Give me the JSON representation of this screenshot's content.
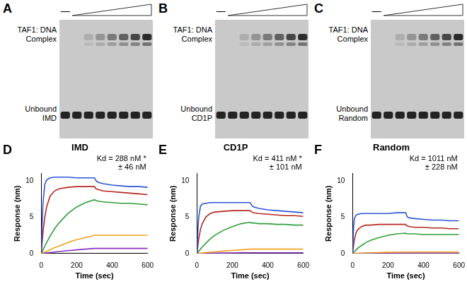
{
  "gels": [
    {
      "panel": "A",
      "lanes": 8,
      "control_lane": "—",
      "complex_label": [
        "TAF1: DNA",
        "Complex"
      ],
      "unbound_label": [
        "Unbound",
        "IMD"
      ]
    },
    {
      "panel": "B",
      "lanes": 8,
      "control_lane": "—",
      "complex_label": [
        "TAF1: DNA",
        "Complex"
      ],
      "unbound_label": [
        "Unbound",
        "CD1P"
      ]
    },
    {
      "panel": "C",
      "lanes": 8,
      "control_lane": "—",
      "complex_label": [
        "TAF1: DNA",
        "Complex"
      ],
      "unbound_label": [
        "Unbound",
        "Random"
      ]
    }
  ],
  "chart_data": [
    {
      "panel": "D",
      "type": "line",
      "title": "IMD",
      "annotations": [
        "Kd = 288 nM *",
        "± 46 nM"
      ],
      "x_label": "Time (sec)",
      "y_label": "Response (nm)",
      "x": [
        0,
        5,
        10,
        20,
        30,
        50,
        75,
        100,
        150,
        200,
        250,
        300,
        305,
        310,
        320,
        350,
        400,
        450,
        500,
        550,
        600
      ],
      "series": [
        {
          "color": "#2c55d6",
          "values": [
            0,
            4,
            7,
            9.5,
            10.1,
            10.4,
            10.5,
            10.5,
            10.5,
            10.4,
            10.4,
            10.4,
            10.2,
            10.0,
            9.8,
            9.6,
            9.4,
            9.3,
            9.2,
            9.2,
            9.1
          ]
        },
        {
          "color": "#b5271f",
          "values": [
            0,
            1.5,
            3,
            5,
            6.4,
            7.9,
            8.6,
            8.9,
            9.1,
            9.2,
            9.2,
            9.2,
            9.0,
            8.9,
            8.8,
            8.6,
            8.5,
            8.4,
            8.3,
            8.2,
            8.1
          ]
        },
        {
          "color": "#2e9e3a",
          "values": [
            0,
            0.2,
            0.5,
            1,
            1.5,
            2.4,
            3.4,
            4.2,
            5.5,
            6.4,
            7.0,
            7.4,
            7.3,
            7.3,
            7.2,
            7.1,
            7.0,
            6.9,
            6.9,
            6.8,
            6.7
          ]
        },
        {
          "color": "#f2a01f",
          "values": [
            0,
            0.05,
            0.1,
            0.2,
            0.3,
            0.5,
            0.8,
            1.0,
            1.5,
            1.9,
            2.2,
            2.5,
            2.5,
            2.5,
            2.5,
            2.5,
            2.5,
            2.5,
            2.5,
            2.5,
            2.5
          ]
        },
        {
          "color": "#8b2fc9",
          "values": [
            0,
            0.01,
            0.02,
            0.05,
            0.08,
            0.13,
            0.2,
            0.27,
            0.4,
            0.5,
            0.6,
            0.7,
            0.7,
            0.7,
            0.7,
            0.7,
            0.7,
            0.7,
            0.7,
            0.7,
            0.7
          ]
        }
      ],
      "xlim": [
        0,
        600
      ],
      "xticks": [
        0,
        200,
        400,
        600
      ],
      "ylim": [
        0,
        11
      ],
      "yticks": [
        0,
        5,
        10
      ],
      "grid": false
    },
    {
      "panel": "E",
      "type": "line",
      "title": "CD1P",
      "annotations": [
        "Kd = 411 nM *",
        "± 101 nM"
      ],
      "x_label": "Time (sec)",
      "y_label": "Response (nm)",
      "x": [
        0,
        5,
        10,
        20,
        30,
        50,
        75,
        100,
        150,
        200,
        250,
        300,
        305,
        310,
        320,
        350,
        400,
        450,
        500,
        550,
        600
      ],
      "series": [
        {
          "color": "#2c55d6",
          "values": [
            0,
            3,
            5,
            6.5,
            6.8,
            6.9,
            7.0,
            7.0,
            7.0,
            7.0,
            7.0,
            7.0,
            6.8,
            6.6,
            6.4,
            6.2,
            6.0,
            5.9,
            5.8,
            5.7,
            5.6
          ]
        },
        {
          "color": "#b5271f",
          "values": [
            0,
            1,
            2,
            3.3,
            4.1,
            5.0,
            5.5,
            5.7,
            5.8,
            5.9,
            5.9,
            5.9,
            5.8,
            5.7,
            5.6,
            5.5,
            5.4,
            5.3,
            5.2,
            5.2,
            5.1
          ]
        },
        {
          "color": "#2e9e3a",
          "values": [
            0,
            0.15,
            0.3,
            0.6,
            0.9,
            1.4,
            2.0,
            2.5,
            3.2,
            3.7,
            4.1,
            4.3,
            4.2,
            4.2,
            4.2,
            4.1,
            4.1,
            4.0,
            4.0,
            3.9,
            3.9
          ]
        },
        {
          "color": "#f2a01f",
          "values": [
            0,
            0.01,
            0.02,
            0.05,
            0.07,
            0.12,
            0.18,
            0.23,
            0.33,
            0.42,
            0.5,
            0.6,
            0.6,
            0.6,
            0.6,
            0.6,
            0.6,
            0.6,
            0.6,
            0.6,
            0.6
          ]
        },
        {
          "color": "#8b2fc9",
          "values": [
            0,
            0,
            0.01,
            0.01,
            0.02,
            0.03,
            0.04,
            0.05,
            0.07,
            0.08,
            0.09,
            0.1,
            0.1,
            0.1,
            0.1,
            0.1,
            0.1,
            0.1,
            0.1,
            0.1,
            0.1
          ]
        }
      ],
      "xlim": [
        0,
        600
      ],
      "xticks": [
        0,
        200,
        400,
        600
      ],
      "ylim": [
        0,
        11
      ],
      "yticks": [
        0,
        5,
        10
      ],
      "grid": false
    },
    {
      "panel": "F",
      "type": "line",
      "title": "Random",
      "annotations": [
        "Kd = 1011 nM",
        "± 228 nM"
      ],
      "x_label": "Time (sec)",
      "y_label": "Response (nm)",
      "x": [
        0,
        5,
        10,
        20,
        30,
        50,
        75,
        100,
        150,
        200,
        250,
        300,
        305,
        310,
        320,
        350,
        400,
        450,
        500,
        550,
        600
      ],
      "series": [
        {
          "color": "#2c55d6",
          "values": [
            0,
            3.5,
            4.8,
            5.3,
            5.4,
            5.5,
            5.5,
            5.5,
            5.5,
            5.5,
            5.6,
            5.6,
            5.2,
            5.0,
            4.9,
            4.8,
            4.7,
            4.6,
            4.6,
            4.5,
            4.5
          ]
        },
        {
          "color": "#b5271f",
          "values": [
            0,
            1,
            1.9,
            2.9,
            3.3,
            3.7,
            3.9,
            3.9,
            4.0,
            4.0,
            4.0,
            4.0,
            3.8,
            3.8,
            3.7,
            3.6,
            3.6,
            3.5,
            3.5,
            3.4,
            3.4
          ]
        },
        {
          "color": "#2e9e3a",
          "values": [
            0,
            0.1,
            0.25,
            0.5,
            0.75,
            1.1,
            1.5,
            1.8,
            2.2,
            2.5,
            2.7,
            2.8,
            2.7,
            2.7,
            2.7,
            2.7,
            2.6,
            2.6,
            2.6,
            2.6,
            2.6
          ]
        },
        {
          "color": "#f2a01f",
          "values": [
            0,
            0,
            0.01,
            0.02,
            0.03,
            0.05,
            0.08,
            0.1,
            0.13,
            0.16,
            0.18,
            0.2,
            0.2,
            0.2,
            0.2,
            0.2,
            0.2,
            0.2,
            0.2,
            0.2,
            0.2
          ]
        },
        {
          "color": "#8b2fc9",
          "values": [
            0,
            0,
            0,
            0.01,
            0.01,
            0.02,
            0.02,
            0.03,
            0.04,
            0.05,
            0.05,
            0.05,
            0.05,
            0.05,
            0.05,
            0.05,
            0.05,
            0.05,
            0.05,
            0.05,
            0.05
          ]
        }
      ],
      "xlim": [
        0,
        600
      ],
      "xticks": [
        0,
        200,
        400,
        600
      ],
      "ylim": [
        0,
        11
      ],
      "yticks": [
        0,
        5,
        10
      ],
      "grid": false
    }
  ]
}
